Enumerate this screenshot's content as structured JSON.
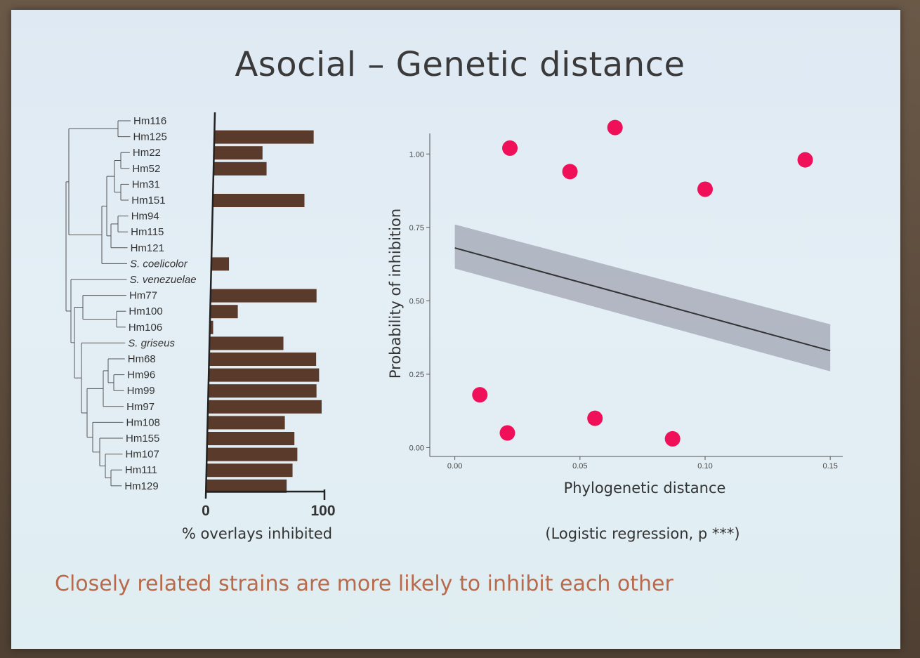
{
  "slide": {
    "title": "Asocial – Genetic distance",
    "caption": "Closely related strains are more likely to inhibit each other"
  },
  "chart_data": [
    {
      "type": "bar",
      "orientation": "horizontal",
      "categories": [
        "Hm116",
        "Hm125",
        "Hm22",
        "Hm52",
        "Hm31",
        "Hm151",
        "Hm94",
        "Hm115",
        "Hm121",
        "S. coelicolor",
        "S. venezuelae",
        "Hm77",
        "Hm100",
        "Hm106",
        "S. griseus",
        "Hm68",
        "Hm96",
        "Hm99",
        "Hm97",
        "Hm108",
        "Hm155",
        "Hm107",
        "Hm111",
        "Hm129"
      ],
      "italic_categories": [
        "S. coelicolor",
        "S. venezuelae",
        "S. griseus"
      ],
      "values": [
        0,
        90,
        44,
        48,
        0,
        83,
        0,
        0,
        0,
        16,
        0,
        96,
        25,
        3,
        67,
        97,
        100,
        98,
        103,
        70,
        79,
        82,
        78,
        73
      ],
      "xlim": [
        0,
        100
      ],
      "xticks": [
        "0",
        "100"
      ],
      "xlabel": "% overlays inhibited",
      "bar_color": "#5a3a2a",
      "dendrogram": true
    },
    {
      "type": "line",
      "x": [
        0.0,
        0.15
      ],
      "y": [
        0.68,
        0.33
      ],
      "band_lower": [
        0.61,
        0.26
      ],
      "band_upper": [
        0.76,
        0.42
      ],
      "xlim": [
        -0.01,
        0.155
      ],
      "ylim": [
        -0.03,
        1.07
      ],
      "xticks": [
        "0.00",
        "0.05",
        "0.10",
        "0.15"
      ],
      "yticks": [
        "0.00",
        "0.25",
        "0.50",
        "0.75",
        "1.00"
      ],
      "xlabel": "Phylogenetic distance",
      "ylabel": "Probability of inhibition",
      "note": "(Logistic regression, p ***)",
      "line_color": "#333333",
      "band_color": "#8a8a9a",
      "markers": [
        {
          "x": 0.022,
          "y": 1.02
        },
        {
          "x": 0.064,
          "y": 1.09
        },
        {
          "x": 0.046,
          "y": 0.94
        },
        {
          "x": 0.1,
          "y": 0.88
        },
        {
          "x": 0.14,
          "y": 0.98
        },
        {
          "x": 0.01,
          "y": 0.18
        },
        {
          "x": 0.021,
          "y": 0.05
        },
        {
          "x": 0.056,
          "y": 0.1
        },
        {
          "x": 0.087,
          "y": 0.03
        }
      ],
      "marker_color": "#f0105a"
    }
  ]
}
